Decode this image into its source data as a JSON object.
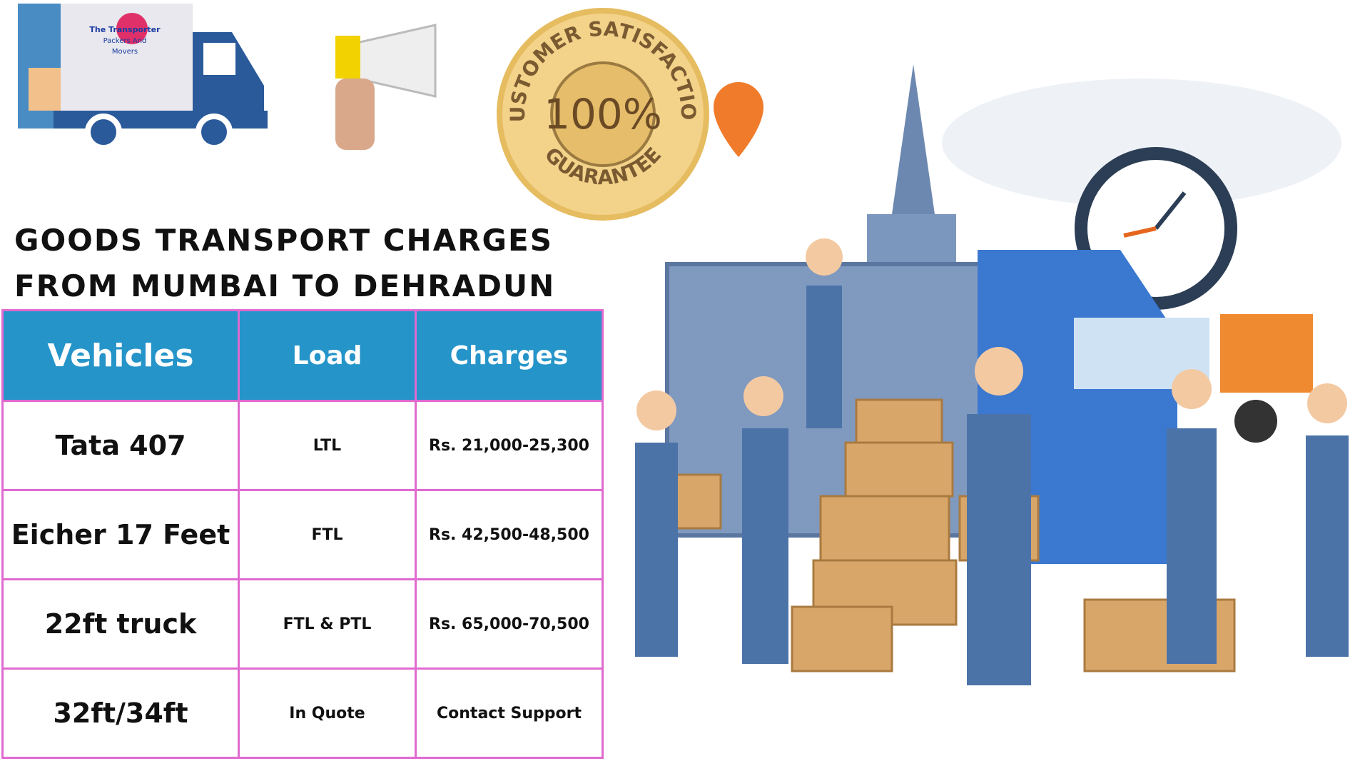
{
  "logo": {
    "lines": [
      "The Transporter",
      "Packers And",
      "Movers"
    ]
  },
  "badge": {
    "top": "CUSTOMER SATISFACTION",
    "center": "100%",
    "bottom": "GUARANTEE"
  },
  "title": {
    "lines": [
      "GOODS TRANSPORT CHARGES",
      "FROM MUMBAI TO DEHRADUN"
    ]
  },
  "table": {
    "headers": [
      "Vehicles",
      "Load",
      "Charges"
    ],
    "rows": [
      [
        "Tata 407",
        "LTL",
        "Rs. 21,000-25,300"
      ],
      [
        "Eicher 17 Feet",
        "FTL",
        "Rs. 42,500-48,500"
      ],
      [
        "22ft truck",
        "FTL & PTL",
        "Rs. 65,000-70,500"
      ],
      [
        "32ft/34ft",
        "In Quote",
        "Contact Support"
      ]
    ]
  }
}
